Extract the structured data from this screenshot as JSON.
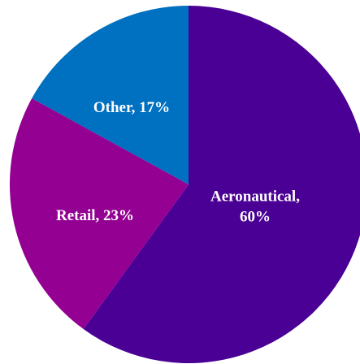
{
  "chart_data": {
    "type": "pie",
    "title": "",
    "start_angle_deg": 0,
    "direction": "clockwise",
    "slices": [
      {
        "label": "Aeronautical",
        "value": 60,
        "percent_label": "60%",
        "text_lines": [
          "Aeronautical,",
          "60%"
        ],
        "color": "#4B0095"
      },
      {
        "label": "Retail",
        "value": 23,
        "percent_label": "23%",
        "text_lines": [
          "Retail, 23%"
        ],
        "color": "#930092"
      },
      {
        "label": "Other",
        "value": 17,
        "percent_label": "17%",
        "text_lines": [
          "Other, 17%"
        ],
        "color": "#0070C0"
      }
    ],
    "legend": "none"
  }
}
